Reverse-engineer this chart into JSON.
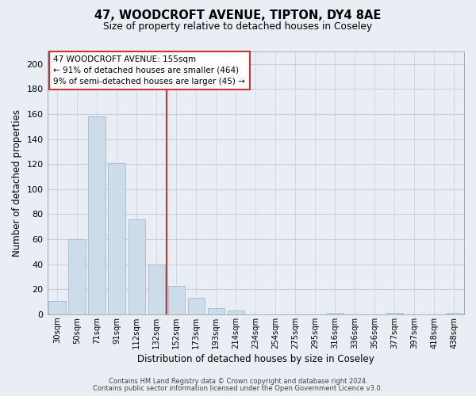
{
  "title": "47, WOODCROFT AVENUE, TIPTON, DY4 8AE",
  "subtitle": "Size of property relative to detached houses in Coseley",
  "xlabel": "Distribution of detached houses by size in Coseley",
  "ylabel": "Number of detached properties",
  "categories": [
    "30sqm",
    "50sqm",
    "71sqm",
    "91sqm",
    "112sqm",
    "132sqm",
    "152sqm",
    "173sqm",
    "193sqm",
    "214sqm",
    "234sqm",
    "254sqm",
    "275sqm",
    "295sqm",
    "316sqm",
    "336sqm",
    "356sqm",
    "377sqm",
    "397sqm",
    "418sqm",
    "438sqm"
  ],
  "values": [
    11,
    60,
    158,
    121,
    76,
    40,
    23,
    13,
    5,
    3,
    0,
    0,
    0,
    0,
    1,
    0,
    0,
    1,
    0,
    0,
    1
  ],
  "bar_color": "#ccdce8",
  "bar_edge_color": "#a8c0d4",
  "highlight_line_index": 6,
  "ylim": [
    0,
    210
  ],
  "yticks": [
    0,
    20,
    40,
    60,
    80,
    100,
    120,
    140,
    160,
    180,
    200
  ],
  "annotation_title": "47 WOODCROFT AVENUE: 155sqm",
  "annotation_line1": "← 91% of detached houses are smaller (464)",
  "annotation_line2": "9% of semi-detached houses are larger (45) →",
  "footer_line1": "Contains HM Land Registry data © Crown copyright and database right 2024.",
  "footer_line2": "Contains public sector information licensed under the Open Government Licence v3.0.",
  "background_color": "#e8eef4",
  "plot_bg_color": "#e8eef4",
  "grid_color": "#c8cfd8"
}
